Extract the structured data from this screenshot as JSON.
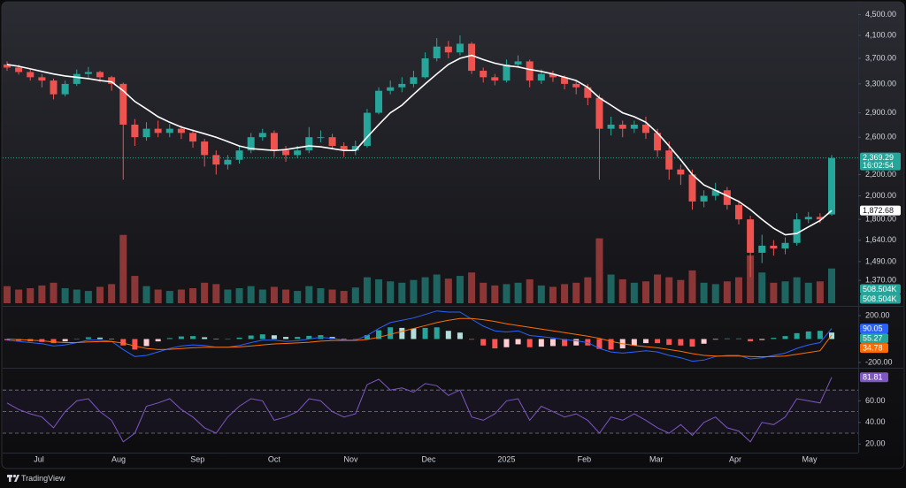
{
  "brand": "TradingView",
  "chart_data": [
    {
      "type": "candlestick",
      "open": [
        3600,
        3550,
        3480,
        3400,
        3350,
        3150,
        3300,
        3450,
        3480,
        3400,
        3300,
        2750,
        2600,
        2700,
        2650,
        2700,
        2650,
        2550,
        2400,
        2300,
        2350,
        2450,
        2600,
        2650,
        2450,
        2400,
        2450,
        2600,
        2600,
        2500,
        2450,
        2500,
        2900,
        3200,
        3250,
        3300,
        3400,
        3700,
        3900,
        3800,
        3950,
        3500,
        3400,
        3350,
        3600,
        3650,
        3350,
        3450,
        3400,
        3300,
        3250,
        3100,
        2700,
        2750,
        2700,
        2750,
        2650,
        2450,
        2250,
        2200,
        1950,
        2000,
        2050,
        1920,
        1800,
        1550,
        1600,
        1580,
        1620,
        1800,
        1820,
        1840
      ],
      "high": [
        3650,
        3600,
        3520,
        3450,
        3380,
        3350,
        3520,
        3560,
        3500,
        3420,
        3320,
        2820,
        2780,
        2800,
        2760,
        2740,
        2690,
        2580,
        2450,
        2400,
        2500,
        2650,
        2700,
        2680,
        2500,
        2500,
        2720,
        2680,
        2640,
        2540,
        2560,
        2950,
        3250,
        3350,
        3400,
        3500,
        3800,
        4050,
        4000,
        4100,
        3980,
        3550,
        3450,
        3680,
        3750,
        3680,
        3520,
        3500,
        3430,
        3350,
        3300,
        3150,
        2850,
        2800,
        2800,
        2850,
        2700,
        2550,
        2300,
        2250,
        2050,
        2120,
        2080,
        1960,
        1830,
        1680,
        1640,
        1660,
        1850,
        1860,
        1850,
        2400
      ],
      "low": [
        3500,
        3440,
        3350,
        3250,
        3080,
        3120,
        3270,
        3380,
        3330,
        3200,
        2150,
        2500,
        2560,
        2600,
        2600,
        2580,
        2480,
        2280,
        2200,
        2250,
        2310,
        2420,
        2560,
        2380,
        2330,
        2370,
        2420,
        2540,
        2460,
        2380,
        2400,
        2480,
        2880,
        3150,
        3180,
        3250,
        3380,
        3650,
        3700,
        3750,
        3450,
        3320,
        3280,
        3320,
        3550,
        3250,
        3300,
        3330,
        3220,
        3150,
        3000,
        2150,
        2620,
        2600,
        2650,
        2580,
        2380,
        2150,
        2100,
        1880,
        1900,
        1960,
        1880,
        1760,
        1390,
        1480,
        1530,
        1540,
        1600,
        1770,
        1770,
        1830
      ],
      "close": [
        3550,
        3480,
        3400,
        3350,
        3150,
        3300,
        3450,
        3480,
        3400,
        3300,
        2750,
        2600,
        2700,
        2650,
        2700,
        2650,
        2550,
        2400,
        2300,
        2350,
        2450,
        2600,
        2650,
        2450,
        2400,
        2450,
        2600,
        2600,
        2500,
        2450,
        2500,
        2900,
        3200,
        3250,
        3300,
        3400,
        3700,
        3900,
        3800,
        3950,
        3500,
        3400,
        3350,
        3600,
        3650,
        3350,
        3450,
        3400,
        3300,
        3250,
        3100,
        2700,
        2750,
        2700,
        2750,
        2650,
        2450,
        2250,
        2200,
        1950,
        2000,
        2050,
        1920,
        1800,
        1550,
        1600,
        1580,
        1620,
        1800,
        1820,
        1800,
        2369.29
      ],
      "up_color": "#26a69a",
      "down_color": "#ef5350",
      "log_scale": true,
      "ylim": [
        1227,
        4654
      ],
      "yticks": [
        {
          "value": 4500,
          "label": "4,500.00"
        },
        {
          "value": 4100,
          "label": "4,100.00"
        },
        {
          "value": 3700,
          "label": "3,700.00"
        },
        {
          "value": 3300,
          "label": "3,300.00"
        },
        {
          "value": 2900,
          "label": "2,900.00"
        },
        {
          "value": 2600,
          "label": "2,600.00"
        },
        {
          "value": 2200,
          "label": "2,200.00"
        },
        {
          "value": 2000,
          "label": "2,000.00"
        },
        {
          "value": 1800,
          "label": "1,800.00"
        },
        {
          "value": 1640,
          "label": "1,640.00"
        },
        {
          "value": 1490,
          "label": "1,490.00"
        },
        {
          "value": 1370,
          "label": "1,370.00"
        }
      ],
      "xlim": [
        0,
        71
      ],
      "xticks": [
        {
          "value": 2.74,
          "label": "Jul"
        },
        {
          "value": 9.6,
          "label": "Aug"
        },
        {
          "value": 16.4,
          "label": "Sep"
        },
        {
          "value": 23,
          "label": "Oct"
        },
        {
          "value": 29.6,
          "label": "Nov"
        },
        {
          "value": 36.3,
          "label": "Dec"
        },
        {
          "value": 43,
          "label": "2025"
        },
        {
          "value": 49.7,
          "label": "Feb"
        },
        {
          "value": 55.9,
          "label": "Mar"
        },
        {
          "value": 62.7,
          "label": "Apr"
        },
        {
          "value": 69.1,
          "label": "May"
        }
      ],
      "ma": {
        "color": "#ffffff",
        "values": [
          3600,
          3570,
          3530,
          3490,
          3450,
          3420,
          3400,
          3380,
          3350,
          3330,
          3200,
          3050,
          2950,
          2850,
          2780,
          2720,
          2680,
          2640,
          2600,
          2550,
          2500,
          2470,
          2460,
          2450,
          2460,
          2480,
          2500,
          2490,
          2470,
          2450,
          2450,
          2600,
          2750,
          2900,
          3000,
          3150,
          3300,
          3450,
          3600,
          3700,
          3750,
          3680,
          3620,
          3580,
          3560,
          3520,
          3490,
          3450,
          3400,
          3350,
          3250,
          3100,
          3000,
          2900,
          2850,
          2780,
          2650,
          2500,
          2350,
          2200,
          2100,
          2050,
          2000,
          1950,
          1880,
          1800,
          1730,
          1680,
          1690,
          1740,
          1790,
          1872.68
        ]
      },
      "last_price": {
        "value": 2369.29,
        "label": "2,369.29"
      },
      "countdown": "16:02:54",
      "ma_last": {
        "value": 1872.68,
        "label": "1,872.68"
      },
      "volume": {
        "ylim": [
          0,
          1100000
        ],
        "opacity": 0.55,
        "values": [
          250000,
          200000,
          220000,
          260000,
          300000,
          220000,
          200000,
          180000,
          240000,
          280000,
          1000000,
          400000,
          250000,
          200000,
          180000,
          200000,
          220000,
          300000,
          280000,
          200000,
          220000,
          250000,
          200000,
          240000,
          200000,
          180000,
          250000,
          220000,
          200000,
          180000,
          230000,
          380000,
          350000,
          320000,
          300000,
          340000,
          380000,
          420000,
          360000,
          400000,
          450000,
          300000,
          260000,
          280000,
          300000,
          350000,
          260000,
          240000,
          280000,
          300000,
          380000,
          950000,
          420000,
          350000,
          300000,
          320000,
          420000,
          380000,
          340000,
          480000,
          300000,
          280000,
          320000,
          380000,
          700000,
          450000,
          300000,
          320000,
          380000,
          300000,
          320000,
          508504
        ],
        "last": {
          "value": 508504,
          "label": "508.504K"
        }
      }
    },
    {
      "type": "macd",
      "ylim": [
        -238,
        268
      ],
      "yticks": [
        {
          "value": 200,
          "label": "200.00"
        },
        {
          "value": -200,
          "label": "-200.00"
        }
      ],
      "macd": {
        "color": "#2962ff",
        "values": [
          -10,
          -20,
          -30,
          -40,
          -60,
          -50,
          -30,
          -10,
          -10,
          -20,
          -90,
          -150,
          -140,
          -110,
          -80,
          -60,
          -50,
          -55,
          -70,
          -70,
          -55,
          -30,
          -10,
          -10,
          -20,
          -15,
          0,
          15,
          5,
          -10,
          -10,
          30,
          90,
          140,
          160,
          180,
          210,
          240,
          230,
          230,
          170,
          110,
          70,
          60,
          70,
          30,
          20,
          10,
          -5,
          -15,
          -30,
          -80,
          -110,
          -120,
          -110,
          -100,
          -110,
          -140,
          -160,
          -190,
          -180,
          -150,
          -140,
          -140,
          -170,
          -160,
          -140,
          -120,
          -80,
          -50,
          -30,
          90.05
        ]
      },
      "signal": {
        "color": "#ff6d00",
        "values": [
          0,
          -5,
          -10,
          -15,
          -25,
          -30,
          -30,
          -25,
          -22,
          -21,
          -35,
          -60,
          -80,
          -90,
          -88,
          -82,
          -75,
          -70,
          -70,
          -70,
          -67,
          -60,
          -50,
          -42,
          -38,
          -33,
          -27,
          -18,
          -13,
          -12,
          -12,
          -4,
          15,
          40,
          65,
          90,
          115,
          140,
          160,
          175,
          175,
          165,
          150,
          130,
          115,
          100,
          85,
          70,
          55,
          40,
          25,
          5,
          -20,
          -40,
          -55,
          -65,
          -75,
          -90,
          -105,
          -125,
          -140,
          -145,
          -145,
          -145,
          -150,
          -152,
          -150,
          -145,
          -130,
          -115,
          -100,
          34.78
        ]
      },
      "histogram": {
        "colors": {
          "rising_above": "#26a69a",
          "falling_above": "#b2dfdb",
          "falling_below": "#ff5252",
          "rising_below": "#ffcdd2"
        },
        "values": [
          -10,
          -15,
          -20,
          -25,
          -35,
          -20,
          0,
          15,
          12,
          1,
          -55,
          -90,
          -60,
          -20,
          8,
          22,
          25,
          15,
          0,
          0,
          12,
          30,
          40,
          32,
          18,
          18,
          27,
          33,
          18,
          2,
          2,
          34,
          75,
          100,
          95,
          90,
          95,
          100,
          70,
          55,
          -5,
          -55,
          -80,
          -70,
          -45,
          -70,
          -65,
          -60,
          -60,
          -55,
          -55,
          -85,
          -90,
          -80,
          -55,
          -35,
          -35,
          -50,
          -55,
          -65,
          -40,
          -5,
          5,
          5,
          -20,
          -8,
          10,
          25,
          50,
          65,
          70,
          55.27
        ]
      }
    },
    {
      "type": "rsi",
      "color": "#7e57c2",
      "ylim": [
        12,
        89
      ],
      "yticks": [
        {
          "value": 60,
          "label": "60.00"
        },
        {
          "value": 40,
          "label": "40.00"
        },
        {
          "value": 20,
          "label": "20.00"
        }
      ],
      "levels": [
        70,
        50,
        30
      ],
      "values": [
        58,
        52,
        48,
        45,
        35,
        50,
        60,
        62,
        50,
        42,
        22,
        30,
        55,
        58,
        62,
        52,
        45,
        35,
        30,
        45,
        55,
        62,
        60,
        42,
        45,
        50,
        62,
        60,
        50,
        45,
        48,
        75,
        80,
        70,
        72,
        68,
        76,
        74,
        65,
        70,
        45,
        42,
        48,
        60,
        62,
        42,
        55,
        50,
        45,
        48,
        42,
        30,
        45,
        42,
        48,
        42,
        35,
        30,
        38,
        28,
        40,
        45,
        35,
        32,
        22,
        40,
        38,
        45,
        62,
        60,
        58,
        81.81
      ]
    }
  ]
}
